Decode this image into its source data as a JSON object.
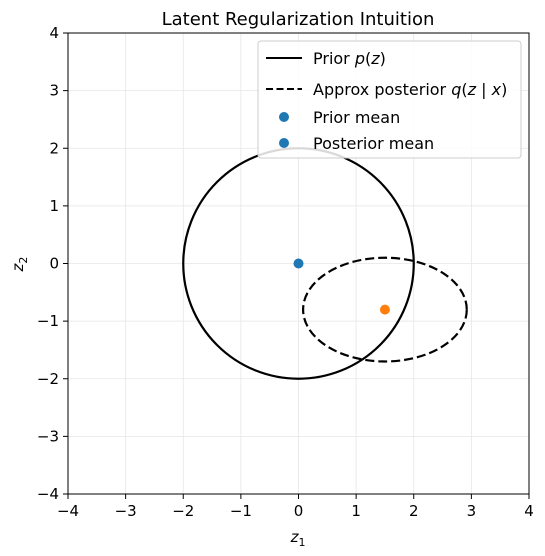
{
  "chart_data": {
    "type": "scatter",
    "title": "Latent Regularization Intuition",
    "xlabel": "z",
    "xlabel_sub": "1",
    "ylabel": "z",
    "ylabel_sub": "2",
    "xlim": [
      -4,
      4
    ],
    "ylim": [
      -4,
      4
    ],
    "xticks": [
      -4,
      -3,
      -2,
      -1,
      0,
      1,
      2,
      3,
      4
    ],
    "yticks": [
      -4,
      -3,
      -2,
      -1,
      0,
      1,
      2,
      3,
      4
    ],
    "grid": true,
    "legend_position": "top-right",
    "series": [
      {
        "name": "Prior p(z)",
        "kind": "circle",
        "center": [
          0,
          0
        ],
        "radius_x": 2,
        "radius_y": 2,
        "style": "solid",
        "color": "#000000"
      },
      {
        "name": "Approx posterior q(z | x)",
        "kind": "ellipse",
        "center": [
          1.5,
          -0.8
        ],
        "radius_x": 1.42,
        "radius_y": 0.9,
        "style": "dashed",
        "color": "#000000"
      },
      {
        "name": "Prior mean",
        "kind": "point",
        "x": 0,
        "y": 0,
        "color": "#1f77b4"
      },
      {
        "name": "Posterior mean",
        "kind": "point",
        "x": 1.5,
        "y": -0.8,
        "color": "#ff7f0e",
        "legend_color": "#1f77b4"
      }
    ],
    "legend": {
      "prior": {
        "prefix": "Prior ",
        "math": "p",
        "open": "(",
        "var": "z",
        "close": ")"
      },
      "posterior": {
        "prefix": "Approx posterior ",
        "math": "q",
        "open": "(",
        "var": "z",
        "mid": " | ",
        "var2": "x",
        "close": ")"
      },
      "prior_mean": "Prior mean",
      "posterior_mean": "Posterior mean"
    }
  }
}
